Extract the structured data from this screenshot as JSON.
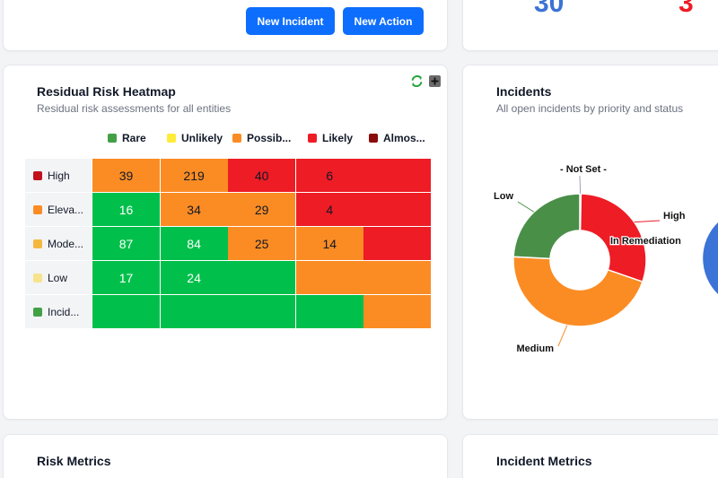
{
  "top_left": {
    "new_incident_label": "New Incident",
    "new_action_label": "New Action"
  },
  "top_right": {
    "stat_1": "30",
    "stat_2": "3"
  },
  "heatmap_card": {
    "title": "Residual Risk Heatmap",
    "subtitle": "Residual risk assessments for all entities",
    "legend": [
      {
        "label": "Rare",
        "color": "#43a047"
      },
      {
        "label": "Unlikely",
        "color": "#ffeb3b"
      },
      {
        "label": "Possib...",
        "color": "#fb8c24"
      },
      {
        "label": "Likely",
        "color": "#ee1c25"
      },
      {
        "label": "Almos...",
        "color": "#8b0a0a"
      }
    ],
    "rows": [
      {
        "label": "High",
        "color": "#c0111c"
      },
      {
        "label": "Eleva...",
        "color": "#fb8c24"
      },
      {
        "label": "Mode...",
        "color": "#f4b840"
      },
      {
        "label": "Low",
        "color": "#f6e38e"
      },
      {
        "label": "Incid...",
        "color": "#43a047"
      }
    ],
    "cells": [
      [
        {
          "v": "39",
          "c": "orange"
        },
        {
          "v": "219",
          "c": "orange"
        },
        {
          "v": "40",
          "c": "red"
        },
        {
          "v": "6",
          "c": "red"
        },
        {
          "v": "",
          "c": "red"
        }
      ],
      [
        {
          "v": "16",
          "c": "green"
        },
        {
          "v": "34",
          "c": "orange"
        },
        {
          "v": "29",
          "c": "orange"
        },
        {
          "v": "4",
          "c": "red"
        },
        {
          "v": "",
          "c": "red"
        }
      ],
      [
        {
          "v": "87",
          "c": "green"
        },
        {
          "v": "84",
          "c": "green"
        },
        {
          "v": "25",
          "c": "orange"
        },
        {
          "v": "14",
          "c": "orange"
        },
        {
          "v": "",
          "c": "red"
        }
      ],
      [
        {
          "v": "17",
          "c": "green"
        },
        {
          "v": "24",
          "c": "green"
        },
        {
          "v": "",
          "c": "green"
        },
        {
          "v": "",
          "c": "orange"
        },
        {
          "v": "",
          "c": "orange"
        }
      ],
      [
        {
          "v": "",
          "c": "green"
        },
        {
          "v": "",
          "c": "green"
        },
        {
          "v": "",
          "c": "green"
        },
        {
          "v": "",
          "c": "green"
        },
        {
          "v": "",
          "c": "orange"
        }
      ]
    ],
    "colors": {
      "green": "#00c04b",
      "orange": "#fb8c24",
      "red": "#ee1c25"
    }
  },
  "incidents_card": {
    "title": "Incidents",
    "subtitle": "All open incidents by priority and status"
  },
  "chart_data": {
    "type": "pie",
    "slices": [
      {
        "label": "- Not Set -",
        "value": 0.3,
        "color": "#9ca3af"
      },
      {
        "label": "High",
        "value": 30,
        "color": "#ee1c25"
      },
      {
        "label": "Medium",
        "value": 45.5,
        "color": "#fb8c24"
      },
      {
        "label": "Low",
        "value": 24.2,
        "color": "#4a8f48"
      }
    ],
    "outer_labels": [
      "In Remediation"
    ]
  },
  "risk_metrics": {
    "title": "Risk Metrics"
  },
  "incident_metrics": {
    "title": "Incident Metrics"
  },
  "icons": {
    "refresh": "refresh-icon",
    "expand": "plus-box-icon"
  }
}
